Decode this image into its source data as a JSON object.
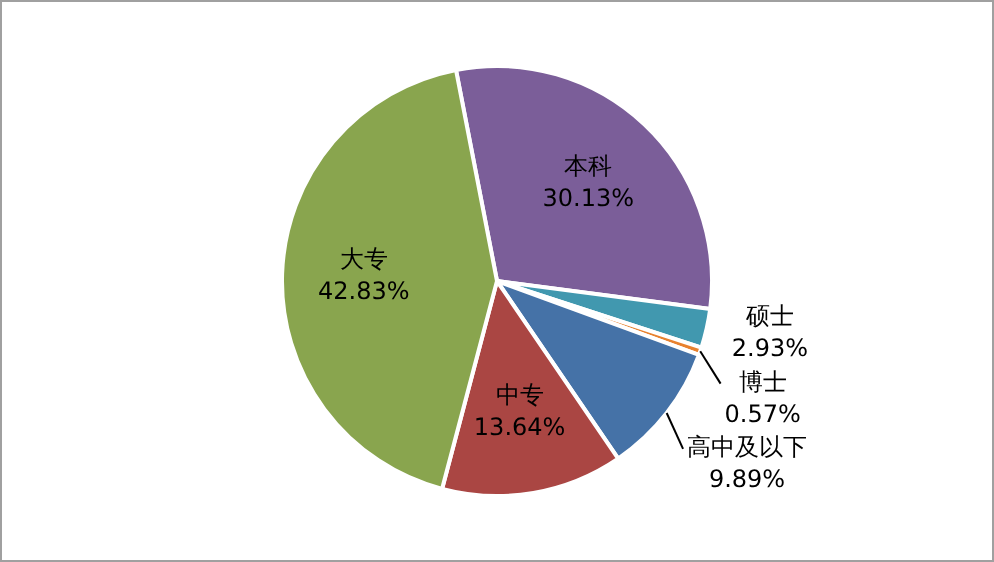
{
  "chart_data": {
    "type": "pie",
    "categories": [
      "本科",
      "硕士",
      "博士",
      "高中及以下",
      "中专",
      "大专"
    ],
    "values": [
      30.13,
      2.93,
      0.57,
      9.89,
      13.64,
      42.83
    ],
    "value_labels": [
      "30.13%",
      "2.93%",
      "0.57%",
      "9.89%",
      "13.64%",
      "42.83%"
    ],
    "colors": [
      "#7b5e99",
      "#4198af",
      "#e8822f",
      "#4572a7",
      "#aa4643",
      "#89a54e"
    ],
    "legend": false
  }
}
